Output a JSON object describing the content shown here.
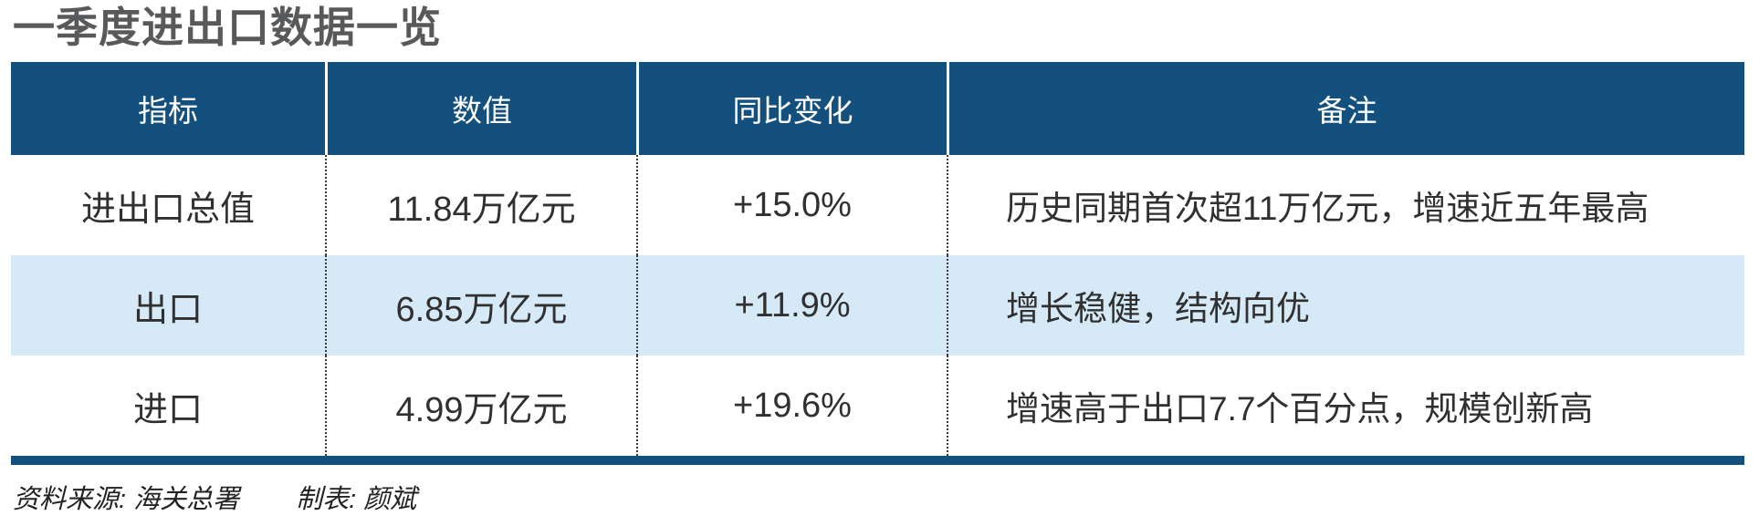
{
  "page": {
    "title": "一季度进出口数据一览"
  },
  "table": {
    "columns": [
      {
        "label": "指标"
      },
      {
        "label": "数值"
      },
      {
        "label": "同比变化"
      },
      {
        "label": "备注"
      }
    ],
    "rows": [
      {
        "indicator": "进出口总值",
        "value": "11.84万亿元",
        "yoy": "+15.0%",
        "note": "历史同期首次超11万亿元，增速近五年最高"
      },
      {
        "indicator": "出口",
        "value": "6.85万亿元",
        "yoy": "+11.9%",
        "note": "增长稳健，结构向优"
      },
      {
        "indicator": "进口",
        "value": "4.99万亿元",
        "yoy": "+19.6%",
        "note": "增速高于出口7.7个百分点，规模创新高"
      }
    ]
  },
  "footer": {
    "source": "资料来源: 海关总署",
    "author": "制表: 颜斌"
  },
  "colors": {
    "header_bg": "#14507E",
    "row_alt_bg": "#D6E9F6",
    "title_text": "#58595B",
    "body_text": "#303030"
  }
}
